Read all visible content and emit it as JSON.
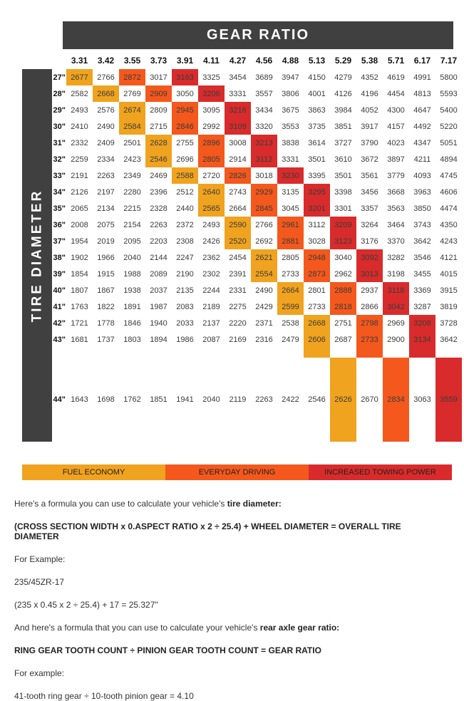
{
  "header": {
    "title": "GEAR RATIO"
  },
  "sidebar": {
    "label": "TIRE DIAMETER"
  },
  "colors": {
    "fuel": "#F0A31F",
    "drive": "#F4581D",
    "tow": "#D92B2B",
    "bar": "#404040"
  },
  "legend": {
    "items": [
      {
        "label": "FUEL ECONOMY",
        "color_key": "fuel"
      },
      {
        "label": "EVERYDAY DRIVING",
        "color_key": "drive"
      },
      {
        "label": "INCREASED TOWING POWER",
        "color_key": "tow"
      }
    ]
  },
  "chart_data": {
    "type": "heatmap",
    "title": "GEAR RATIO",
    "xlabel": "GEAR RATIO",
    "ylabel": "TIRE DIAMETER",
    "legend_position": "bottom",
    "highlight_meaning": {
      "fuel": "FUEL ECONOMY",
      "drive": "EVERYDAY DRIVING",
      "tow": "INCREASED TOWING POWER"
    },
    "columns": [
      "3.31",
      "3.42",
      "3.55",
      "3.73",
      "3.91",
      "4.11",
      "4.27",
      "4.56",
      "4.88",
      "5.13",
      "5.29",
      "5.38",
      "5.71",
      "6.17",
      "7.17"
    ],
    "rows": [
      {
        "label": "27\"",
        "values": [
          2677,
          2766,
          2872,
          3017,
          3163,
          3325,
          3454,
          3689,
          3947,
          4150,
          4279,
          4352,
          4619,
          4991,
          5800
        ],
        "fuel": 0,
        "drive": 2,
        "tow": 4
      },
      {
        "label": "28\"",
        "values": [
          2582,
          2668,
          2769,
          2909,
          3050,
          3206,
          3331,
          3557,
          3806,
          4001,
          4126,
          4196,
          4454,
          4813,
          5593
        ],
        "fuel": 1,
        "drive": 3,
        "tow": 5
      },
      {
        "label": "29\"",
        "values": [
          2493,
          2576,
          2674,
          2809,
          2945,
          3095,
          3216,
          3434,
          3675,
          3863,
          3984,
          4052,
          4300,
          4647,
          5400
        ],
        "fuel": 2,
        "drive": 4,
        "tow": 6
      },
      {
        "label": "30\"",
        "values": [
          2410,
          2490,
          2584,
          2715,
          2846,
          2992,
          3109,
          3320,
          3553,
          3735,
          3851,
          3917,
          4157,
          4492,
          5220
        ],
        "fuel": 2,
        "drive": 4,
        "tow": 6
      },
      {
        "label": "31\"",
        "values": [
          2332,
          2409,
          2501,
          2628,
          2755,
          2896,
          3008,
          3213,
          3838,
          3614,
          3727,
          3790,
          4023,
          4347,
          5051
        ],
        "fuel": 3,
        "drive": 5,
        "tow": 7
      },
      {
        "label": "32\"",
        "values": [
          2259,
          2334,
          2423,
          2546,
          2696,
          2805,
          2914,
          3112,
          3331,
          3501,
          3610,
          3672,
          3897,
          4211,
          4894
        ],
        "fuel": 3,
        "drive": 5,
        "tow": 7
      },
      {
        "label": "33\"",
        "values": [
          2191,
          2263,
          2349,
          2469,
          2588,
          2720,
          2826,
          3018,
          3230,
          3395,
          3501,
          3561,
          3779,
          4093,
          4745
        ],
        "fuel": 4,
        "drive": 6,
        "tow": 8
      },
      {
        "label": "34\"",
        "values": [
          2126,
          2197,
          2280,
          2396,
          2512,
          2640,
          2743,
          2929,
          3135,
          3295,
          3398,
          3456,
          3668,
          3963,
          4606
        ],
        "fuel": 5,
        "drive": 7,
        "tow": 9
      },
      {
        "label": "35\"",
        "values": [
          2065,
          2134,
          2215,
          2328,
          2440,
          2565,
          2664,
          2845,
          3045,
          3201,
          3301,
          3357,
          3563,
          3850,
          4474
        ],
        "fuel": 5,
        "drive": 7,
        "tow": 9
      },
      {
        "label": "36\"",
        "values": [
          2008,
          2075,
          2154,
          2263,
          2372,
          2493,
          2590,
          2766,
          2961,
          3112,
          3209,
          3264,
          3464,
          3743,
          4350
        ],
        "fuel": 6,
        "drive": 8,
        "tow": 10
      },
      {
        "label": "37\"",
        "values": [
          1954,
          2019,
          2095,
          2203,
          2308,
          2426,
          2520,
          2692,
          2881,
          3028,
          3123,
          3176,
          3370,
          3642,
          4243
        ],
        "fuel": 6,
        "drive": 8,
        "tow": 10
      },
      {
        "label": "38\"",
        "values": [
          1902,
          1966,
          2040,
          2144,
          2247,
          2362,
          2454,
          2621,
          2805,
          2948,
          3040,
          3092,
          3282,
          3546,
          4121
        ],
        "fuel": 7,
        "drive": 9,
        "tow": 11
      },
      {
        "label": "39\"",
        "values": [
          1854,
          1915,
          1988,
          2089,
          2190,
          2302,
          2391,
          2554,
          2733,
          2873,
          2962,
          3013,
          3198,
          3455,
          4015
        ],
        "fuel": 7,
        "drive": 9,
        "tow": 11
      },
      {
        "label": "40\"",
        "values": [
          1807,
          1867,
          1938,
          2037,
          2135,
          2244,
          2331,
          2490,
          2664,
          2801,
          2888,
          2937,
          3118,
          3369,
          3915
        ],
        "fuel": 8,
        "drive": 10,
        "tow": 12
      },
      {
        "label": "41\"",
        "values": [
          1763,
          1822,
          1891,
          1987,
          2083,
          2189,
          2275,
          2429,
          2599,
          2733,
          2818,
          2866,
          3042,
          3287,
          3819
        ],
        "fuel": 8,
        "drive": 10,
        "tow": 12
      },
      {
        "label": "42\"",
        "values": [
          1721,
          1778,
          1846,
          1940,
          2033,
          2137,
          2220,
          2371,
          2538,
          2668,
          2751,
          2798,
          2969,
          3208,
          3728
        ],
        "fuel": 9,
        "drive": 11,
        "tow": 13
      },
      {
        "label": "43\"",
        "values": [
          1681,
          1737,
          1803,
          1894,
          1986,
          2087,
          2169,
          2316,
          2479,
          2606,
          2687,
          2733,
          2900,
          3134,
          3642
        ],
        "fuel": 9,
        "drive": 11,
        "tow": 13,
        "spacer_after": true
      },
      {
        "label": "44\"",
        "values": [
          1643,
          1698,
          1762,
          1851,
          1941,
          2040,
          2119,
          2263,
          2422,
          2546,
          2626,
          2670,
          2834,
          3063,
          3559
        ],
        "fuel": 10,
        "drive": 12,
        "tow": 14,
        "tall": true
      }
    ]
  },
  "footer": {
    "p1": {
      "text": "Here's a formula you can use to calculate your vehicle's ",
      "bold": "tire diameter:"
    },
    "p2": "(CROSS SECTION WIDTH x 0.ASPECT RATIO x 2 ÷ 25.4) + WHEEL DIAMETER = OVERALL TIRE DIAMETER",
    "p3": "For Example:",
    "p4": "235/45ZR-17",
    "p5": "(235 x 0.45 x 2 ÷ 25.4) + 17 = 25.327\"",
    "p6": {
      "text": "And here's a formula that you can use to calculate your vehicle's ",
      "bold": "rear axle gear ratio:"
    },
    "p7": "RING GEAR TOOTH COUNT ÷ PINION GEAR TOOTH COUNT = GEAR RATIO",
    "p8": "For example:",
    "p9": "41-tooth ring gear ÷ 10-tooth pinion gear = 4.10"
  }
}
